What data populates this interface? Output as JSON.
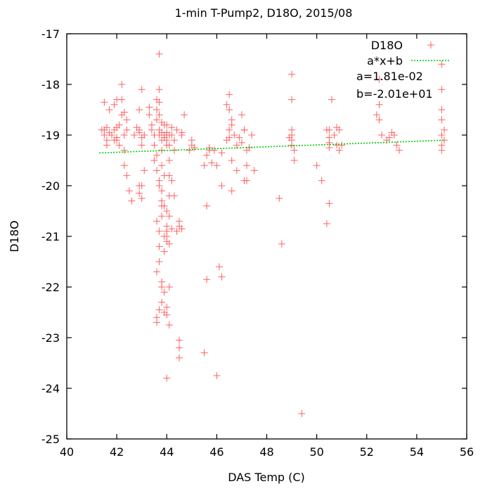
{
  "chart_data": {
    "type": "scatter",
    "title": "1-min T-Pump2, D18O, 2015/08",
    "xlabel": "DAS Temp (C)",
    "ylabel": "D18O",
    "xlim": [
      40,
      56
    ],
    "ylim": [
      -25,
      -17
    ],
    "xticks": [
      "40",
      "42",
      "44",
      "46",
      "48",
      "50",
      "52",
      "54",
      "56"
    ],
    "yticks": [
      "-25",
      "-24",
      "-23",
      "-22",
      "-21",
      "-20",
      "-19",
      "-18",
      "-17"
    ],
    "grid": false,
    "legend_position": "top-right",
    "colors": {
      "points": "#ff6060",
      "fit": "#00cc00"
    },
    "series": [
      {
        "name": "D18O",
        "marker": "plus",
        "x": [
          41.4,
          41.5,
          41.5,
          41.6,
          41.6,
          41.7,
          41.8,
          41.9,
          41.9,
          42.0,
          42.0,
          42.1,
          42.1,
          42.2,
          42.2,
          42.3,
          42.3,
          42.3,
          42.4,
          42.4,
          41.5,
          41.6,
          41.7,
          41.9,
          42.0,
          42.2,
          42.3,
          42.4,
          42.5,
          42.6,
          42.7,
          42.8,
          42.9,
          42.9,
          43.0,
          43.0,
          43.1,
          42.9,
          43.0,
          42.9,
          43.0,
          43.1,
          42.9,
          43.0,
          43.3,
          43.4,
          43.4,
          43.5,
          43.5,
          43.6,
          43.6,
          43.6,
          43.7,
          43.7,
          43.7,
          43.7,
          43.7,
          43.8,
          43.8,
          43.8,
          43.8,
          43.9,
          43.9,
          43.9,
          44.0,
          44.0,
          44.0,
          44.0,
          44.1,
          44.1,
          44.1,
          44.2,
          44.2,
          44.3,
          44.3,
          44.4,
          43.5,
          43.6,
          43.6,
          43.7,
          43.7,
          43.8,
          43.8,
          43.8,
          43.9,
          43.9,
          44.0,
          44.0,
          44.1,
          44.1,
          44.2,
          44.3,
          43.6,
          43.7,
          43.7,
          43.8,
          43.8,
          43.9,
          43.9,
          44.0,
          44.0,
          44.1,
          44.1,
          44.2,
          43.6,
          43.7,
          43.8,
          43.9,
          44.0,
          44.1,
          43.6,
          43.6,
          43.7,
          43.8,
          43.9,
          44.0,
          44.1,
          44.5,
          44.5,
          44.6,
          44.6,
          44.7,
          44.9,
          45.0,
          45.0,
          45.1,
          45.5,
          45.6,
          45.7,
          45.7,
          45.8,
          45.9,
          46.0,
          46.2,
          46.4,
          46.5,
          46.5,
          46.6,
          46.7,
          46.8,
          46.9,
          47.0,
          47.1,
          47.2,
          47.3,
          46.5,
          46.6,
          47.0,
          47.1,
          47.4,
          46.4,
          46.5,
          46.6,
          46.8,
          47.1,
          47.2,
          47.5,
          45.6,
          46.2,
          46.6,
          47.2,
          49.0,
          49.0,
          49.0,
          49.0,
          49.1,
          49.1,
          48.9,
          49.0,
          49.0,
          48.5,
          48.6,
          50.0,
          50.2,
          50.4,
          50.5,
          50.5,
          50.5,
          50.5,
          50.6,
          50.7,
          50.8,
          50.8,
          50.9,
          51.0,
          50.5,
          50.9,
          50.4,
          52.4,
          52.5,
          52.5,
          52.6,
          52.8,
          52.9,
          53.0,
          53.1,
          53.2,
          53.3,
          52.5,
          55.0,
          55.0,
          55.0,
          55.0,
          55.0,
          55.0,
          55.1,
          55.1,
          55.0,
          42.0,
          44.0,
          43.3,
          44.5,
          46.0,
          45.5,
          44.5,
          44.0,
          43.7,
          43.8,
          44.0,
          46.1,
          46.2,
          45.6,
          49.4,
          44.4,
          44.5,
          44.6
        ],
        "y": [
          -18.9,
          -19.0,
          -18.9,
          -18.85,
          -19.1,
          -18.95,
          -19.0,
          -18.9,
          -19.1,
          -18.85,
          -19.05,
          -18.8,
          -19.2,
          -18.6,
          -18.0,
          -18.55,
          -19.0,
          -19.3,
          -18.7,
          -18.9,
          -18.35,
          -19.2,
          -18.5,
          -18.4,
          -19.1,
          -18.3,
          -19.6,
          -19.8,
          -20.1,
          -20.3,
          -19.0,
          -18.85,
          -18.5,
          -18.9,
          -18.1,
          -19.05,
          -19.0,
          -18.95,
          -19.2,
          -20.0,
          -20.0,
          -19.7,
          -20.15,
          -20.25,
          -18.6,
          -18.8,
          -18.9,
          -19.0,
          -19.2,
          -18.3,
          -18.5,
          -18.7,
          -18.1,
          -18.35,
          -18.6,
          -18.9,
          -19.0,
          -18.75,
          -18.95,
          -19.1,
          -19.3,
          -18.8,
          -19.0,
          -19.05,
          -18.8,
          -19.0,
          -19.1,
          -19.2,
          -19.0,
          -19.2,
          -19.5,
          -19.0,
          -18.85,
          -19.1,
          -19.3,
          -18.9,
          -19.5,
          -19.4,
          -19.7,
          -19.9,
          -20.0,
          -20.1,
          -20.3,
          -19.6,
          -19.8,
          -20.4,
          -20.5,
          -20.8,
          -20.6,
          -19.8,
          -19.9,
          -20.2,
          -20.7,
          -20.9,
          -21.2,
          -20.4,
          -20.6,
          -21.0,
          -21.3,
          -21.1,
          -20.9,
          -21.15,
          -20.2,
          -20.85,
          -21.7,
          -21.5,
          -21.9,
          -22.1,
          -22.4,
          -22.0,
          -22.6,
          -22.7,
          -22.45,
          -22.3,
          -22.5,
          -22.55,
          -22.75,
          -20.8,
          -20.7,
          -19.0,
          -18.95,
          -18.6,
          -19.3,
          -19.1,
          -19.2,
          -19.25,
          -19.6,
          -19.4,
          -19.3,
          -19.25,
          -19.55,
          -19.3,
          -19.6,
          -19.35,
          -19.1,
          -18.9,
          -19.05,
          -18.8,
          -19.0,
          -19.2,
          -19.05,
          -19.15,
          -18.9,
          -19.3,
          -19.25,
          -18.5,
          -18.7,
          -18.6,
          -18.9,
          -19.0,
          -18.4,
          -18.2,
          -19.5,
          -19.7,
          -19.9,
          -19.6,
          -19.7,
          -20.4,
          -20.0,
          -20.1,
          -19.9,
          -17.8,
          -18.3,
          -19.0,
          -19.2,
          -19.3,
          -19.5,
          -19.05,
          -18.9,
          -19.1,
          -20.25,
          -21.15,
          -19.6,
          -19.9,
          -18.9,
          -18.9,
          -19.05,
          -19.15,
          -19.25,
          -18.3,
          -19.0,
          -18.85,
          -19.2,
          -19.3,
          -19.2,
          -20.35,
          -18.9,
          -20.75,
          -18.6,
          -18.4,
          -18.7,
          -19.0,
          -19.1,
          -19.05,
          -18.95,
          -19.0,
          -19.2,
          -19.3,
          -17.9,
          -17.6,
          -18.5,
          -18.7,
          -19.0,
          -19.2,
          -19.3,
          -19.1,
          -18.9,
          -18.1,
          -18.3,
          -18.95,
          -18.45,
          -23.2,
          -23.75,
          -23.3,
          -23.4,
          -23.8,
          -17.4,
          -22.0,
          -21.0,
          -21.6,
          -21.8,
          -21.85,
          -24.5,
          -20.9,
          -23.05,
          -20.85
        ],
        "fit": {
          "name": "a*x+b",
          "a": 0.0181,
          "b": -20.1,
          "x_range": [
            41.3,
            55.1
          ]
        },
        "annotations": [
          "a=1.81e-02",
          "b=-2.01e+01"
        ]
      }
    ]
  }
}
